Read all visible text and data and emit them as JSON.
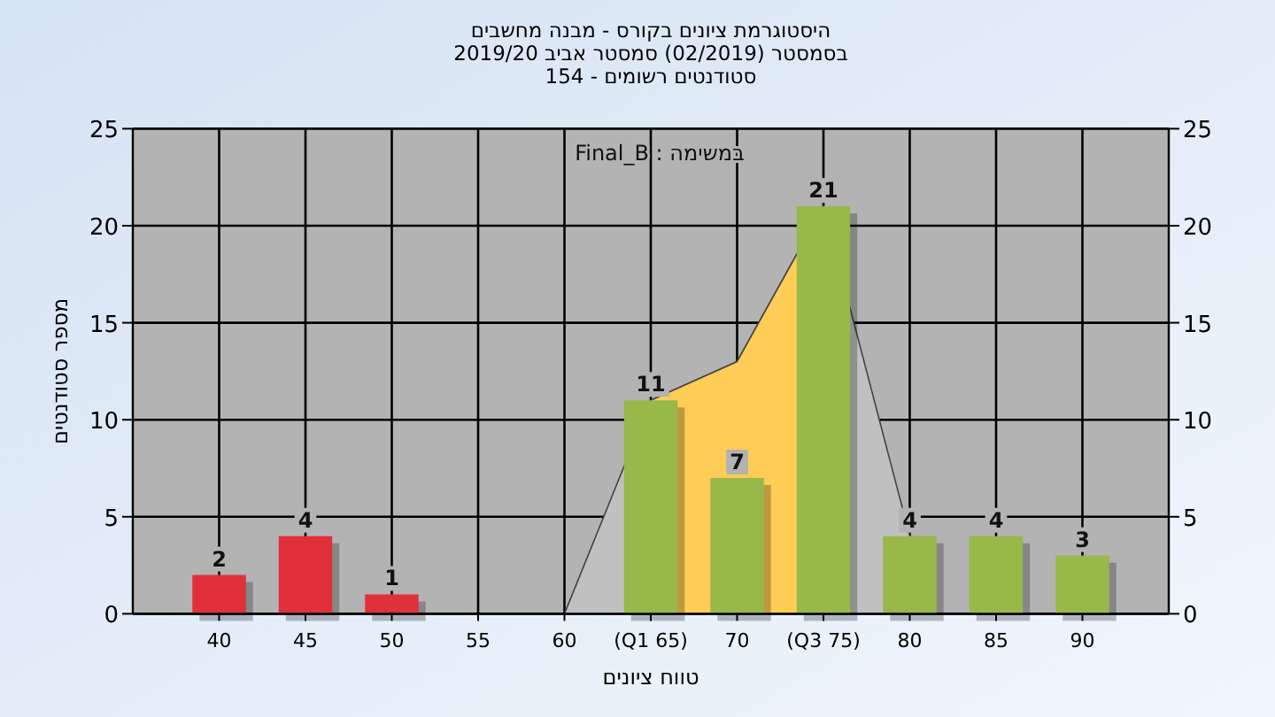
{
  "chart_data": {
    "type": "bar",
    "title": "היסטוגרמת ציונים בקורס - מבנה מחשבים",
    "subtitle": "בסמסטר (02/2019) סמסטר אביב 2019/20\nסטודנטים רשומים - 154",
    "xlabel": "טווח ציונים",
    "ylabel": "מספר סטודנטים",
    "annotations": [
      "במשימה : Final_B"
    ],
    "categories": [
      "40",
      "45",
      "50",
      "55",
      "60",
      "(Q1 65)",
      "70",
      "(Q3 75)",
      "80",
      "85",
      "90"
    ],
    "series": [
      {
        "type": "area",
        "color": "#c0c0c0",
        "values": [
          null,
          null,
          null,
          null,
          0,
          11,
          13,
          21,
          4,
          null,
          null
        ]
      },
      {
        "type": "area",
        "color": "#ffcc55",
        "values": [
          null,
          null,
          null,
          null,
          null,
          11,
          13,
          21,
          null,
          null,
          null
        ]
      },
      {
        "colors": [
          "#e0303a",
          "#e0303a",
          "#e0303a",
          "#98b84a",
          "#98b84a",
          "#98b84a",
          "#98b84a",
          "#98b84a",
          "#98b84a",
          "#98b84a",
          "#98b84a"
        ],
        "values": [
          2,
          4,
          1,
          0,
          0,
          11,
          7,
          21,
          4,
          4,
          3
        ],
        "value_labels": [
          "2",
          "4",
          "1",
          null,
          null,
          "11",
          "7",
          "21",
          "4",
          "4",
          "3"
        ]
      }
    ],
    "ylim": [
      0,
      25
    ],
    "yticks": [
      0,
      5,
      10,
      15,
      20,
      25
    ],
    "y2lim": [
      0,
      25
    ],
    "y2ticks": [
      0,
      5,
      10,
      15,
      20,
      25
    ],
    "grid": true
  }
}
